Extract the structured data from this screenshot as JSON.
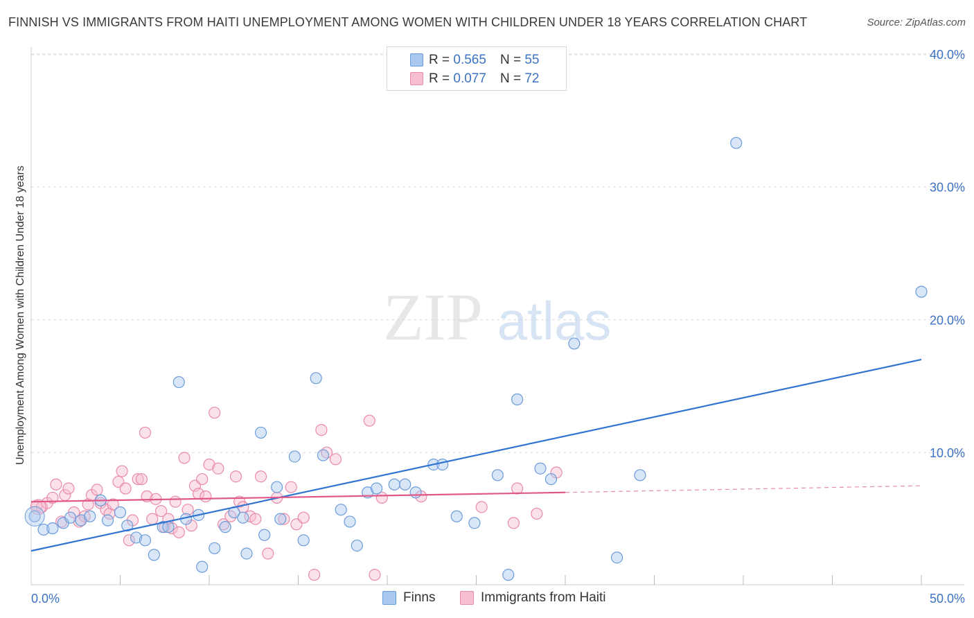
{
  "header": {
    "title": "FINNISH VS IMMIGRANTS FROM HAITI UNEMPLOYMENT AMONG WOMEN WITH CHILDREN UNDER 18 YEARS CORRELATION CHART",
    "source": "Source: ZipAtlas.com"
  },
  "watermark": {
    "zip": "ZIP",
    "atlas": "atlas"
  },
  "legend": {
    "finns": {
      "r_label": "R =",
      "r_value": "0.565",
      "n_label": "N =",
      "n_value": "55"
    },
    "haiti": {
      "r_label": "R =",
      "r_value": "0.077",
      "n_label": "N =",
      "n_value": "72"
    }
  },
  "colors": {
    "finns_fill": "#aac8ef",
    "finns_stroke": "#6b9bd8",
    "finns_line": "#2f74d0",
    "haiti_fill": "#f6bfd0",
    "haiti_stroke": "#e98aa8",
    "haiti_line": "#e0578a",
    "tick_text": "#3b72c4",
    "grid": "#dcdcdc"
  },
  "chart_data": {
    "type": "scatter",
    "title": "FINNISH VS IMMIGRANTS FROM HAITI UNEMPLOYMENT AMONG WOMEN WITH CHILDREN UNDER 18 YEARS CORRELATION CHART",
    "xlabel": "",
    "ylabel": "Unemployment Among Women with Children Under 18 years",
    "xlim": [
      0,
      50
    ],
    "ylim": [
      0,
      42
    ],
    "x_tick_labels": [
      "0.0%",
      "50.0%"
    ],
    "y_ticks": [
      10,
      20,
      30,
      40
    ],
    "y_tick_labels": [
      "10.0%",
      "20.0%",
      "30.0%",
      "40.0%"
    ],
    "grid": true,
    "legend_position": "top-center",
    "series": [
      {
        "name": "Finns",
        "trend": {
          "x": [
            0,
            50
          ],
          "y": [
            2.6,
            17.0
          ]
        },
        "points": [
          [
            0.2,
            5.2
          ],
          [
            0.7,
            4.2
          ],
          [
            1.2,
            4.3
          ],
          [
            1.8,
            4.7
          ],
          [
            2.2,
            5.1
          ],
          [
            2.8,
            4.9
          ],
          [
            3.3,
            5.2
          ],
          [
            3.9,
            6.4
          ],
          [
            4.3,
            4.9
          ],
          [
            5.0,
            5.5
          ],
          [
            5.4,
            4.5
          ],
          [
            5.9,
            3.6
          ],
          [
            6.4,
            3.4
          ],
          [
            6.9,
            2.3
          ],
          [
            7.4,
            4.4
          ],
          [
            7.7,
            4.4
          ],
          [
            8.3,
            15.3
          ],
          [
            8.7,
            5.0
          ],
          [
            9.4,
            5.3
          ],
          [
            9.6,
            1.4
          ],
          [
            10.3,
            2.8
          ],
          [
            10.9,
            4.4
          ],
          [
            11.4,
            5.5
          ],
          [
            11.9,
            5.1
          ],
          [
            12.1,
            2.4
          ],
          [
            12.9,
            11.5
          ],
          [
            13.1,
            3.8
          ],
          [
            13.8,
            7.4
          ],
          [
            14.0,
            5.0
          ],
          [
            14.8,
            9.7
          ],
          [
            15.3,
            3.4
          ],
          [
            16.0,
            15.6
          ],
          [
            16.4,
            9.8
          ],
          [
            17.4,
            5.7
          ],
          [
            17.9,
            4.8
          ],
          [
            18.3,
            3.0
          ],
          [
            18.9,
            7.0
          ],
          [
            19.4,
            7.3
          ],
          [
            20.4,
            7.6
          ],
          [
            21.0,
            7.6
          ],
          [
            21.6,
            7.0
          ],
          [
            22.6,
            9.1
          ],
          [
            23.1,
            9.1
          ],
          [
            23.9,
            5.2
          ],
          [
            24.9,
            4.7
          ],
          [
            26.2,
            8.3
          ],
          [
            26.8,
            0.8
          ],
          [
            27.3,
            14.0
          ],
          [
            28.6,
            8.8
          ],
          [
            29.2,
            8.0
          ],
          [
            30.5,
            18.2
          ],
          [
            32.9,
            2.1
          ],
          [
            34.2,
            8.3
          ],
          [
            39.6,
            33.3
          ],
          [
            50.0,
            22.1
          ]
        ]
      },
      {
        "name": "Immigrants from Haiti",
        "trend": {
          "x": [
            0,
            30
          ],
          "y": [
            6.3,
            7.0
          ]
        },
        "trend_dashed": {
          "x": [
            30,
            50
          ],
          "y": [
            7.0,
            7.5
          ]
        },
        "points": [
          [
            0.3,
            6.0
          ],
          [
            0.6,
            5.9
          ],
          [
            0.9,
            6.2
          ],
          [
            1.2,
            6.6
          ],
          [
            1.4,
            7.6
          ],
          [
            1.7,
            4.8
          ],
          [
            1.9,
            6.8
          ],
          [
            2.1,
            7.3
          ],
          [
            2.4,
            5.5
          ],
          [
            2.7,
            4.8
          ],
          [
            3.0,
            5.2
          ],
          [
            3.2,
            6.1
          ],
          [
            3.4,
            6.8
          ],
          [
            3.7,
            7.2
          ],
          [
            3.9,
            6.2
          ],
          [
            4.2,
            5.7
          ],
          [
            4.4,
            5.4
          ],
          [
            4.6,
            6.1
          ],
          [
            4.9,
            7.8
          ],
          [
            5.1,
            8.6
          ],
          [
            5.3,
            7.3
          ],
          [
            5.5,
            3.4
          ],
          [
            5.7,
            4.9
          ],
          [
            6.0,
            8.0
          ],
          [
            6.2,
            8.0
          ],
          [
            6.4,
            11.5
          ],
          [
            6.5,
            6.7
          ],
          [
            6.8,
            5.0
          ],
          [
            7.0,
            6.5
          ],
          [
            7.3,
            5.6
          ],
          [
            7.5,
            4.4
          ],
          [
            7.7,
            5.0
          ],
          [
            7.9,
            4.3
          ],
          [
            8.1,
            6.3
          ],
          [
            8.3,
            4.0
          ],
          [
            8.6,
            9.6
          ],
          [
            8.8,
            5.7
          ],
          [
            9.0,
            4.5
          ],
          [
            9.2,
            7.5
          ],
          [
            9.4,
            6.9
          ],
          [
            9.6,
            8.0
          ],
          [
            9.8,
            6.7
          ],
          [
            10.0,
            9.1
          ],
          [
            10.3,
            13.0
          ],
          [
            10.5,
            8.8
          ],
          [
            10.8,
            4.6
          ],
          [
            11.2,
            5.2
          ],
          [
            11.5,
            8.2
          ],
          [
            11.7,
            6.3
          ],
          [
            11.9,
            5.9
          ],
          [
            12.3,
            5.2
          ],
          [
            12.6,
            5.0
          ],
          [
            12.9,
            8.2
          ],
          [
            13.3,
            2.4
          ],
          [
            13.8,
            6.6
          ],
          [
            14.2,
            5.0
          ],
          [
            14.6,
            7.4
          ],
          [
            14.9,
            4.6
          ],
          [
            15.3,
            5.1
          ],
          [
            15.9,
            0.8
          ],
          [
            16.3,
            11.7
          ],
          [
            16.6,
            10.0
          ],
          [
            17.1,
            9.5
          ],
          [
            19.0,
            12.4
          ],
          [
            19.3,
            0.8
          ],
          [
            19.7,
            6.6
          ],
          [
            21.9,
            6.7
          ],
          [
            25.3,
            5.9
          ],
          [
            27.1,
            4.7
          ],
          [
            27.3,
            7.3
          ],
          [
            28.4,
            5.4
          ],
          [
            29.5,
            8.5
          ]
        ]
      }
    ]
  },
  "bottom_legend": {
    "finns": "Finns",
    "haiti": "Immigrants from Haiti"
  }
}
